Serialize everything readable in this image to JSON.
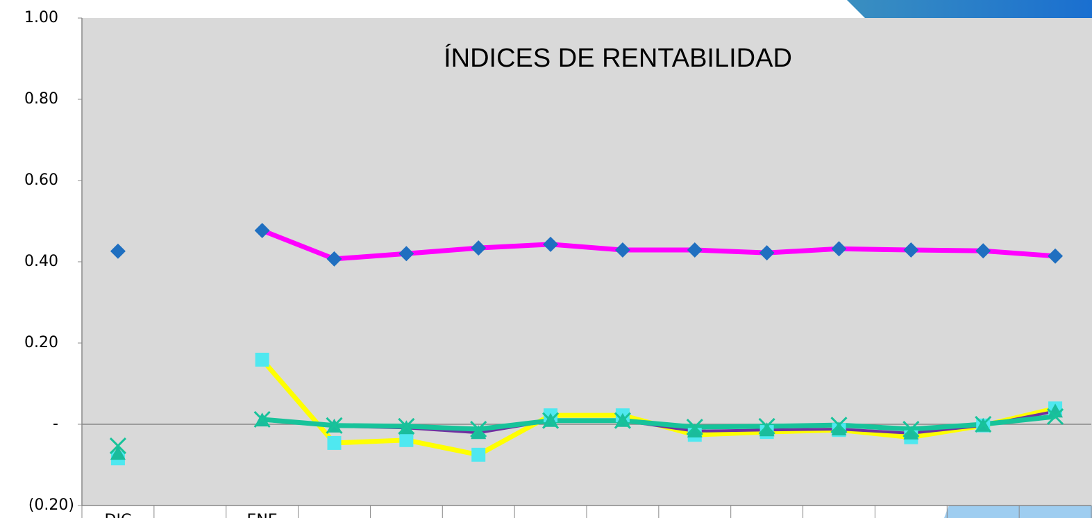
{
  "chart_data": {
    "type": "line",
    "title": "ÍNDICES DE RENTABILIDAD",
    "categories": [
      "DIC",
      null,
      "ENE",
      null,
      null,
      null,
      null,
      null,
      null,
      null,
      null,
      null,
      null,
      null
    ],
    "ylim": [
      -0.2,
      1.0
    ],
    "yticks": [
      {
        "value": -0.2,
        "label": "(0.20)"
      },
      {
        "value": 0,
        "label": "-"
      },
      {
        "value": 0.2,
        "label": "0.20"
      },
      {
        "value": 0.4,
        "label": "0.40"
      },
      {
        "value": 0.6,
        "label": "0.60"
      },
      {
        "value": 0.8,
        "label": "0.80"
      },
      {
        "value": 1.0,
        "label": "1.00"
      }
    ],
    "grid": false,
    "series": [
      {
        "color": "#ff00ff",
        "marker": "diamond",
        "marker_color": "#1f6fc0",
        "values": [
          0.426,
          null,
          0.477,
          0.407,
          0.42,
          0.434,
          0.443,
          0.429,
          0.429,
          0.422,
          0.432,
          0.429,
          0.427,
          0.414
        ]
      },
      {
        "color": "#ffff00",
        "marker": "square",
        "marker_color": "#4fe8f0",
        "values": [
          -0.084,
          null,
          0.159,
          -0.046,
          -0.039,
          -0.075,
          0.022,
          0.022,
          -0.026,
          -0.019,
          -0.014,
          -0.032,
          -0.003,
          0.039
        ]
      },
      {
        "color": "#7030a0",
        "marker": "triangle",
        "marker_color": "#1abc9c",
        "values": [
          -0.072,
          null,
          0.01,
          -0.005,
          -0.009,
          -0.021,
          0.009,
          0.009,
          -0.017,
          -0.014,
          -0.012,
          -0.022,
          -0.003,
          0.032
        ]
      },
      {
        "color": "#17c39a",
        "marker": "x",
        "marker_color": "#17c39a",
        "values": [
          -0.053,
          null,
          0.012,
          -0.003,
          -0.005,
          -0.012,
          0.009,
          0.009,
          -0.007,
          -0.005,
          -0.002,
          -0.012,
          0,
          0.019
        ]
      }
    ]
  }
}
